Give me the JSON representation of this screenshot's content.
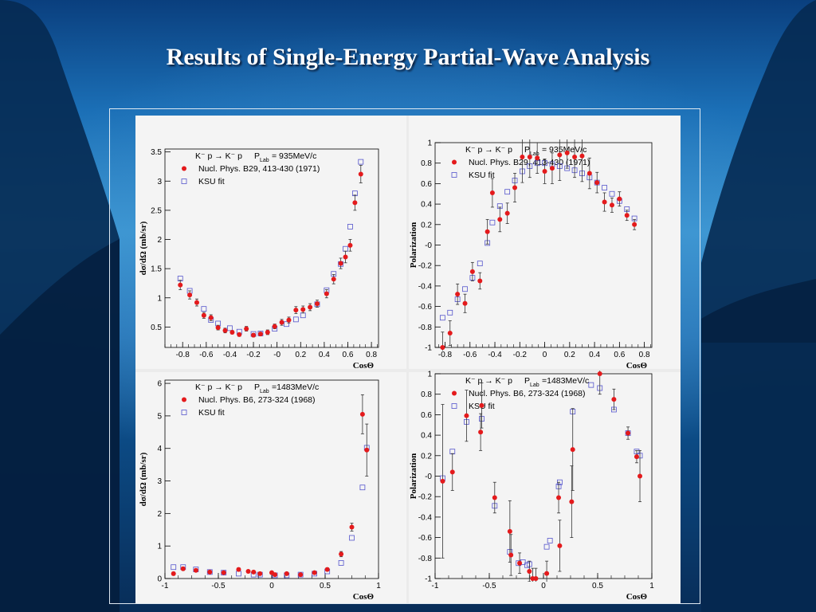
{
  "slide": {
    "title": "Results of Single-Energy Partial-Wave Analysis"
  },
  "colors": {
    "data_points": "#e41a1c",
    "fit_points": "#5555cc",
    "error_bars": "#333333"
  },
  "chart_data": [
    {
      "type": "scatter",
      "reaction": "K⁻ p → K⁻ p",
      "energy_label": "P",
      "energy_sub": "Lab",
      "energy_value": "= 935MeV/c",
      "xlabel": "CosΘ",
      "ylabel": "dσ/dΩ (mb/sr)",
      "xlim": [
        -0.95,
        0.86
      ],
      "ylim": [
        0.15,
        3.55
      ],
      "xticks": [
        -0.8,
        -0.6,
        -0.4,
        -0.2,
        0,
        0.2,
        0.4,
        0.6,
        0.8
      ],
      "xtick_labels": [
        "-0.8",
        "-0.6",
        "-0.4",
        "-0.2",
        "-0",
        "0.2",
        "0.4",
        "0.6",
        "0.8"
      ],
      "yticks": [
        0.5,
        1,
        1.5,
        2,
        2.5,
        3,
        3.5
      ],
      "ytick_labels": [
        "0.5",
        "1",
        "1.5",
        "2",
        "2.5",
        "3",
        "3.5"
      ],
      "grid": false,
      "legend_position": "top",
      "series": [
        {
          "name": "Nucl. Phys. B29, 413-430 (1971)",
          "marker": "dot",
          "x": [
            -0.82,
            -0.74,
            -0.68,
            -0.62,
            -0.56,
            -0.5,
            -0.44,
            -0.38,
            -0.32,
            -0.26,
            -0.2,
            -0.14,
            -0.08,
            -0.02,
            0.04,
            0.1,
            0.16,
            0.22,
            0.28,
            0.34,
            0.42,
            0.48,
            0.54,
            0.58,
            0.62,
            0.66,
            0.71
          ],
          "y": [
            1.22,
            1.05,
            0.92,
            0.7,
            0.66,
            0.49,
            0.44,
            0.41,
            0.37,
            0.47,
            0.36,
            0.38,
            0.41,
            0.51,
            0.58,
            0.62,
            0.79,
            0.8,
            0.84,
            0.9,
            1.07,
            1.32,
            1.59,
            1.7,
            1.9,
            2.63,
            3.12
          ],
          "err": [
            0.08,
            0.07,
            0.06,
            0.05,
            0.05,
            0.04,
            0.04,
            0.03,
            0.03,
            0.04,
            0.03,
            0.03,
            0.04,
            0.04,
            0.05,
            0.05,
            0.06,
            0.06,
            0.06,
            0.06,
            0.07,
            0.08,
            0.09,
            0.1,
            0.1,
            0.13,
            0.15
          ]
        },
        {
          "name": "KSU fit",
          "marker": "open-square",
          "x": [
            -0.82,
            -0.74,
            -0.62,
            -0.56,
            -0.5,
            -0.4,
            -0.32,
            -0.2,
            -0.14,
            -0.02,
            0.08,
            0.16,
            0.22,
            0.34,
            0.42,
            0.48,
            0.54,
            0.58,
            0.62,
            0.66,
            0.71
          ],
          "y": [
            1.33,
            1.12,
            0.81,
            0.62,
            0.56,
            0.48,
            0.42,
            0.38,
            0.39,
            0.47,
            0.55,
            0.63,
            0.7,
            0.89,
            1.13,
            1.41,
            1.58,
            1.84,
            2.22,
            2.79,
            3.33
          ]
        }
      ]
    },
    {
      "type": "scatter",
      "reaction": "K⁻ p → K⁻ p",
      "energy_label": "P",
      "energy_sub": "Lab",
      "energy_value": "= 935MeV/c",
      "xlabel": "CosΘ",
      "ylabel": "Polarization",
      "xlim": [
        -0.88,
        0.86
      ],
      "ylim": [
        -1,
        1
      ],
      "xticks": [
        -0.8,
        -0.6,
        -0.4,
        -0.2,
        0,
        0.2,
        0.4,
        0.6,
        0.8
      ],
      "xtick_labels": [
        "-0.8",
        "-0.6",
        "-0.4",
        "-0.2",
        "0",
        "0.2",
        "0.4",
        "0.6",
        "0.8"
      ],
      "yticks": [
        -1,
        -0.8,
        -0.6,
        -0.4,
        -0.2,
        0,
        0.2,
        0.4,
        0.6,
        0.8,
        1
      ],
      "ytick_labels": [
        "-1",
        "-0.8",
        "-0.6",
        "-0.4",
        "-0.2",
        "-0",
        "0.2",
        "0.4",
        "0.6",
        "0.8",
        "1"
      ],
      "grid": false,
      "legend_position": "top",
      "series": [
        {
          "name": "Nucl. Phys. B29, 413-430 (1971)",
          "marker": "dot",
          "x": [
            -0.82,
            -0.76,
            -0.7,
            -0.64,
            -0.58,
            -0.52,
            -0.46,
            -0.42,
            -0.36,
            -0.3,
            -0.24,
            -0.18,
            -0.12,
            -0.06,
            0.0,
            0.06,
            0.12,
            0.18,
            0.24,
            0.3,
            0.36,
            0.42,
            0.48,
            0.54,
            0.6,
            0.66,
            0.72
          ],
          "y": [
            -1.0,
            -0.86,
            -0.48,
            -0.57,
            -0.26,
            -0.35,
            0.13,
            0.51,
            0.25,
            0.31,
            0.56,
            0.86,
            0.86,
            0.85,
            0.72,
            0.75,
            0.88,
            0.9,
            0.86,
            0.87,
            0.7,
            0.61,
            0.42,
            0.39,
            0.45,
            0.29,
            0.2
          ],
          "err": [
            0.15,
            0.12,
            0.1,
            0.09,
            0.09,
            0.08,
            0.12,
            0.14,
            0.12,
            0.1,
            0.14,
            0.25,
            0.2,
            0.15,
            0.12,
            0.15,
            0.25,
            0.15,
            0.2,
            0.25,
            0.15,
            0.1,
            0.09,
            0.07,
            0.07,
            0.05,
            0.05
          ]
        },
        {
          "name": "KSU fit",
          "marker": "open-square",
          "x": [
            -0.82,
            -0.76,
            -0.7,
            -0.64,
            -0.58,
            -0.52,
            -0.46,
            -0.42,
            -0.36,
            -0.3,
            -0.24,
            -0.18,
            -0.12,
            -0.06,
            0.0,
            0.06,
            0.12,
            0.18,
            0.24,
            0.3,
            0.36,
            0.42,
            0.48,
            0.54,
            0.6,
            0.66,
            0.72
          ],
          "y": [
            -0.71,
            -0.66,
            -0.53,
            -0.43,
            -0.32,
            -0.18,
            0.02,
            0.22,
            0.38,
            0.52,
            0.63,
            0.72,
            0.77,
            0.8,
            0.8,
            0.79,
            0.77,
            0.75,
            0.73,
            0.7,
            0.66,
            0.61,
            0.56,
            0.5,
            0.43,
            0.35,
            0.26
          ]
        }
      ]
    },
    {
      "type": "scatter",
      "reaction": "K⁻ p → K⁻ p",
      "energy_label": "P",
      "energy_sub": "Lab",
      "energy_value": "=1483MeV/c",
      "xlabel": "CosΘ",
      "ylabel": "dσ/dΩ (mb/sr)",
      "xlim": [
        -1,
        1
      ],
      "ylim": [
        0,
        6.1
      ],
      "xticks": [
        -1,
        -0.5,
        0,
        0.5,
        1
      ],
      "xtick_labels": [
        "-1",
        "-0.5",
        "0",
        "0.5",
        "1"
      ],
      "yticks": [
        0,
        1,
        2,
        3,
        4,
        5,
        6
      ],
      "ytick_labels": [
        "0",
        "1",
        "2",
        "3",
        "4",
        "5",
        "6"
      ],
      "grid": false,
      "legend_position": "top",
      "series": [
        {
          "name": "Nucl. Phys. B6, 273-324 (1968)",
          "marker": "dot",
          "x": [
            -0.92,
            -0.83,
            -0.71,
            -0.58,
            -0.45,
            -0.31,
            -0.22,
            -0.17,
            -0.11,
            0.0,
            0.03,
            0.14,
            0.27,
            0.4,
            0.52,
            0.65,
            0.75,
            0.85,
            0.89
          ],
          "y": [
            0.15,
            0.3,
            0.25,
            0.2,
            0.18,
            0.28,
            0.22,
            0.2,
            0.15,
            0.18,
            0.12,
            0.15,
            0.12,
            0.18,
            0.28,
            0.75,
            1.58,
            5.05,
            3.95
          ],
          "err": [
            0.05,
            0.05,
            0.04,
            0.04,
            0.03,
            0.05,
            0.04,
            0.03,
            0.03,
            0.03,
            0.03,
            0.03,
            0.03,
            0.04,
            0.05,
            0.08,
            0.12,
            0.6,
            0.8
          ]
        },
        {
          "name": "KSU fit",
          "marker": "open-square",
          "x": [
            -0.92,
            -0.83,
            -0.71,
            -0.58,
            -0.45,
            -0.31,
            -0.17,
            -0.11,
            0.03,
            0.14,
            0.27,
            0.4,
            0.52,
            0.65,
            0.75,
            0.85,
            0.89
          ],
          "y": [
            0.35,
            0.35,
            0.28,
            0.2,
            0.18,
            0.15,
            0.12,
            0.12,
            0.1,
            0.1,
            0.12,
            0.15,
            0.22,
            0.48,
            1.25,
            2.8,
            4.02
          ]
        }
      ]
    },
    {
      "type": "scatter",
      "reaction": "K⁻ p → K⁻ p",
      "energy_label": "P",
      "energy_sub": "Lab",
      "energy_value": "=1483MeV/c",
      "xlabel": "CosΘ",
      "ylabel": "Polarization",
      "xlim": [
        -1,
        1
      ],
      "ylim": [
        -1,
        1
      ],
      "xticks": [
        -1,
        -0.5,
        0,
        0.5,
        1
      ],
      "xtick_labels": [
        "-1",
        "-0.5",
        "0",
        "0.5",
        "1"
      ],
      "yticks": [
        -1,
        -0.8,
        -0.6,
        -0.4,
        -0.2,
        0,
        0.2,
        0.4,
        0.6,
        0.8,
        1
      ],
      "ytick_labels": [
        "-1",
        "-0.8",
        "-0.6",
        "-0.4",
        "-0.2",
        "-0",
        "0.2",
        "0.4",
        "0.6",
        "0.8",
        "1"
      ],
      "grid": false,
      "legend_position": "top",
      "series": [
        {
          "name": "Nucl. Phys. B6, 273-324 (1968)",
          "marker": "dot",
          "x": [
            -0.93,
            -0.84,
            -0.71,
            -0.58,
            -0.57,
            -0.45,
            -0.31,
            -0.3,
            -0.22,
            -0.13,
            -0.1,
            -0.07,
            0.03,
            0.14,
            0.15,
            0.26,
            0.27,
            0.52,
            0.65,
            0.78,
            0.86,
            0.89
          ],
          "y": [
            -0.05,
            0.04,
            0.59,
            0.43,
            0.69,
            -0.21,
            -0.54,
            -0.77,
            -0.85,
            -0.93,
            -1.0,
            -1.0,
            -0.95,
            -0.21,
            -0.68,
            -0.25,
            0.26,
            1.0,
            0.75,
            0.42,
            0.19,
            0.0
          ],
          "err": [
            0.75,
            0.18,
            0.25,
            0.18,
            0.22,
            0.15,
            0.3,
            0.2,
            0.1,
            0.1,
            0.1,
            0.1,
            0.12,
            0.15,
            0.25,
            0.35,
            0.4,
            0.2,
            0.1,
            0.06,
            0.06,
            0.25
          ]
        },
        {
          "name": "KSU fit",
          "marker": "open-square",
          "x": [
            -0.93,
            -0.84,
            -0.71,
            -0.57,
            -0.45,
            -0.31,
            -0.23,
            -0.19,
            -0.15,
            -0.13,
            0.03,
            0.06,
            0.14,
            0.15,
            0.27,
            0.44,
            0.52,
            0.65,
            0.78,
            0.86,
            0.89
          ],
          "y": [
            -0.02,
            0.24,
            0.53,
            0.56,
            -0.29,
            -0.74,
            -0.85,
            -0.84,
            -0.87,
            -0.86,
            -0.69,
            -0.63,
            -0.1,
            -0.06,
            0.63,
            0.89,
            0.86,
            0.65,
            0.42,
            0.24,
            0.2
          ]
        }
      ]
    }
  ]
}
